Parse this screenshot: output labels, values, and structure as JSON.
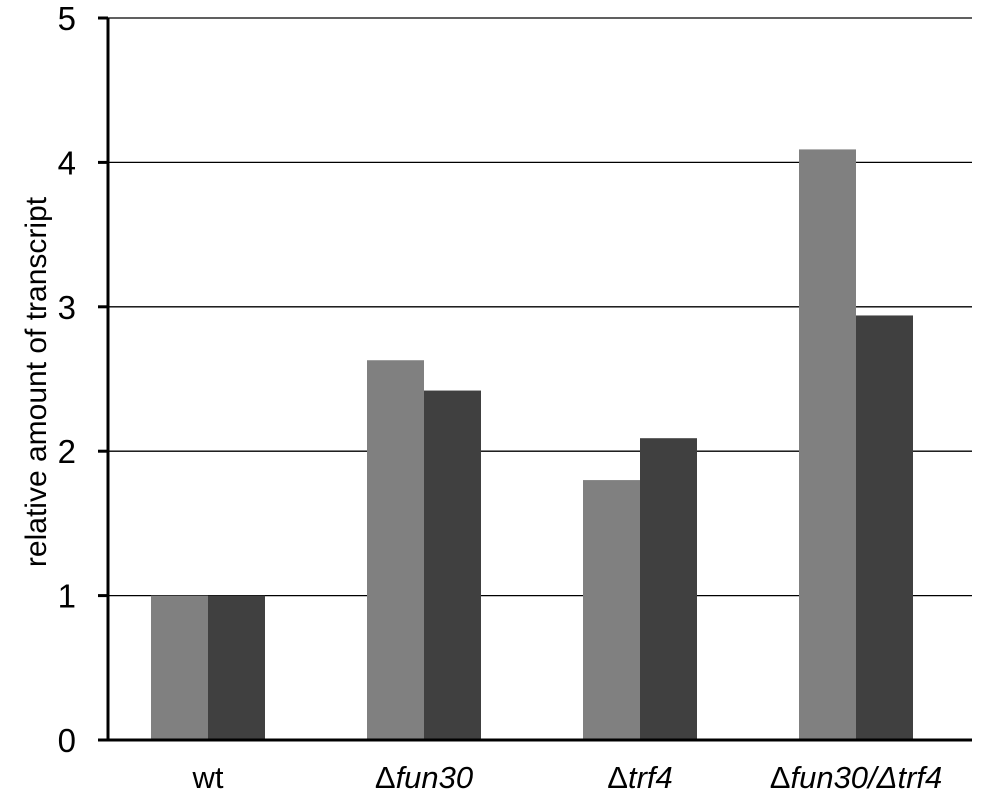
{
  "chart_data": {
    "type": "bar",
    "title": "",
    "xlabel": "",
    "ylabel": "relative amount of transcript",
    "ylim": [
      0,
      5
    ],
    "yticks": [
      0,
      1,
      2,
      3,
      4,
      5
    ],
    "grid": true,
    "legend": "none",
    "categories": [
      {
        "prefix": "",
        "name": "wt",
        "italic": false
      },
      {
        "prefix": "Δ",
        "name": "fun30",
        "italic": true
      },
      {
        "prefix": "Δ",
        "name": "trf4",
        "italic": true
      },
      {
        "prefix": "Δ",
        "name": "fun30/Δtrf4",
        "italic": true
      }
    ],
    "series": [
      {
        "color": "#808080",
        "values": [
          1.0,
          2.63,
          1.8,
          4.09
        ]
      },
      {
        "color": "#404040",
        "values": [
          1.0,
          2.42,
          2.09,
          2.94
        ]
      }
    ]
  }
}
